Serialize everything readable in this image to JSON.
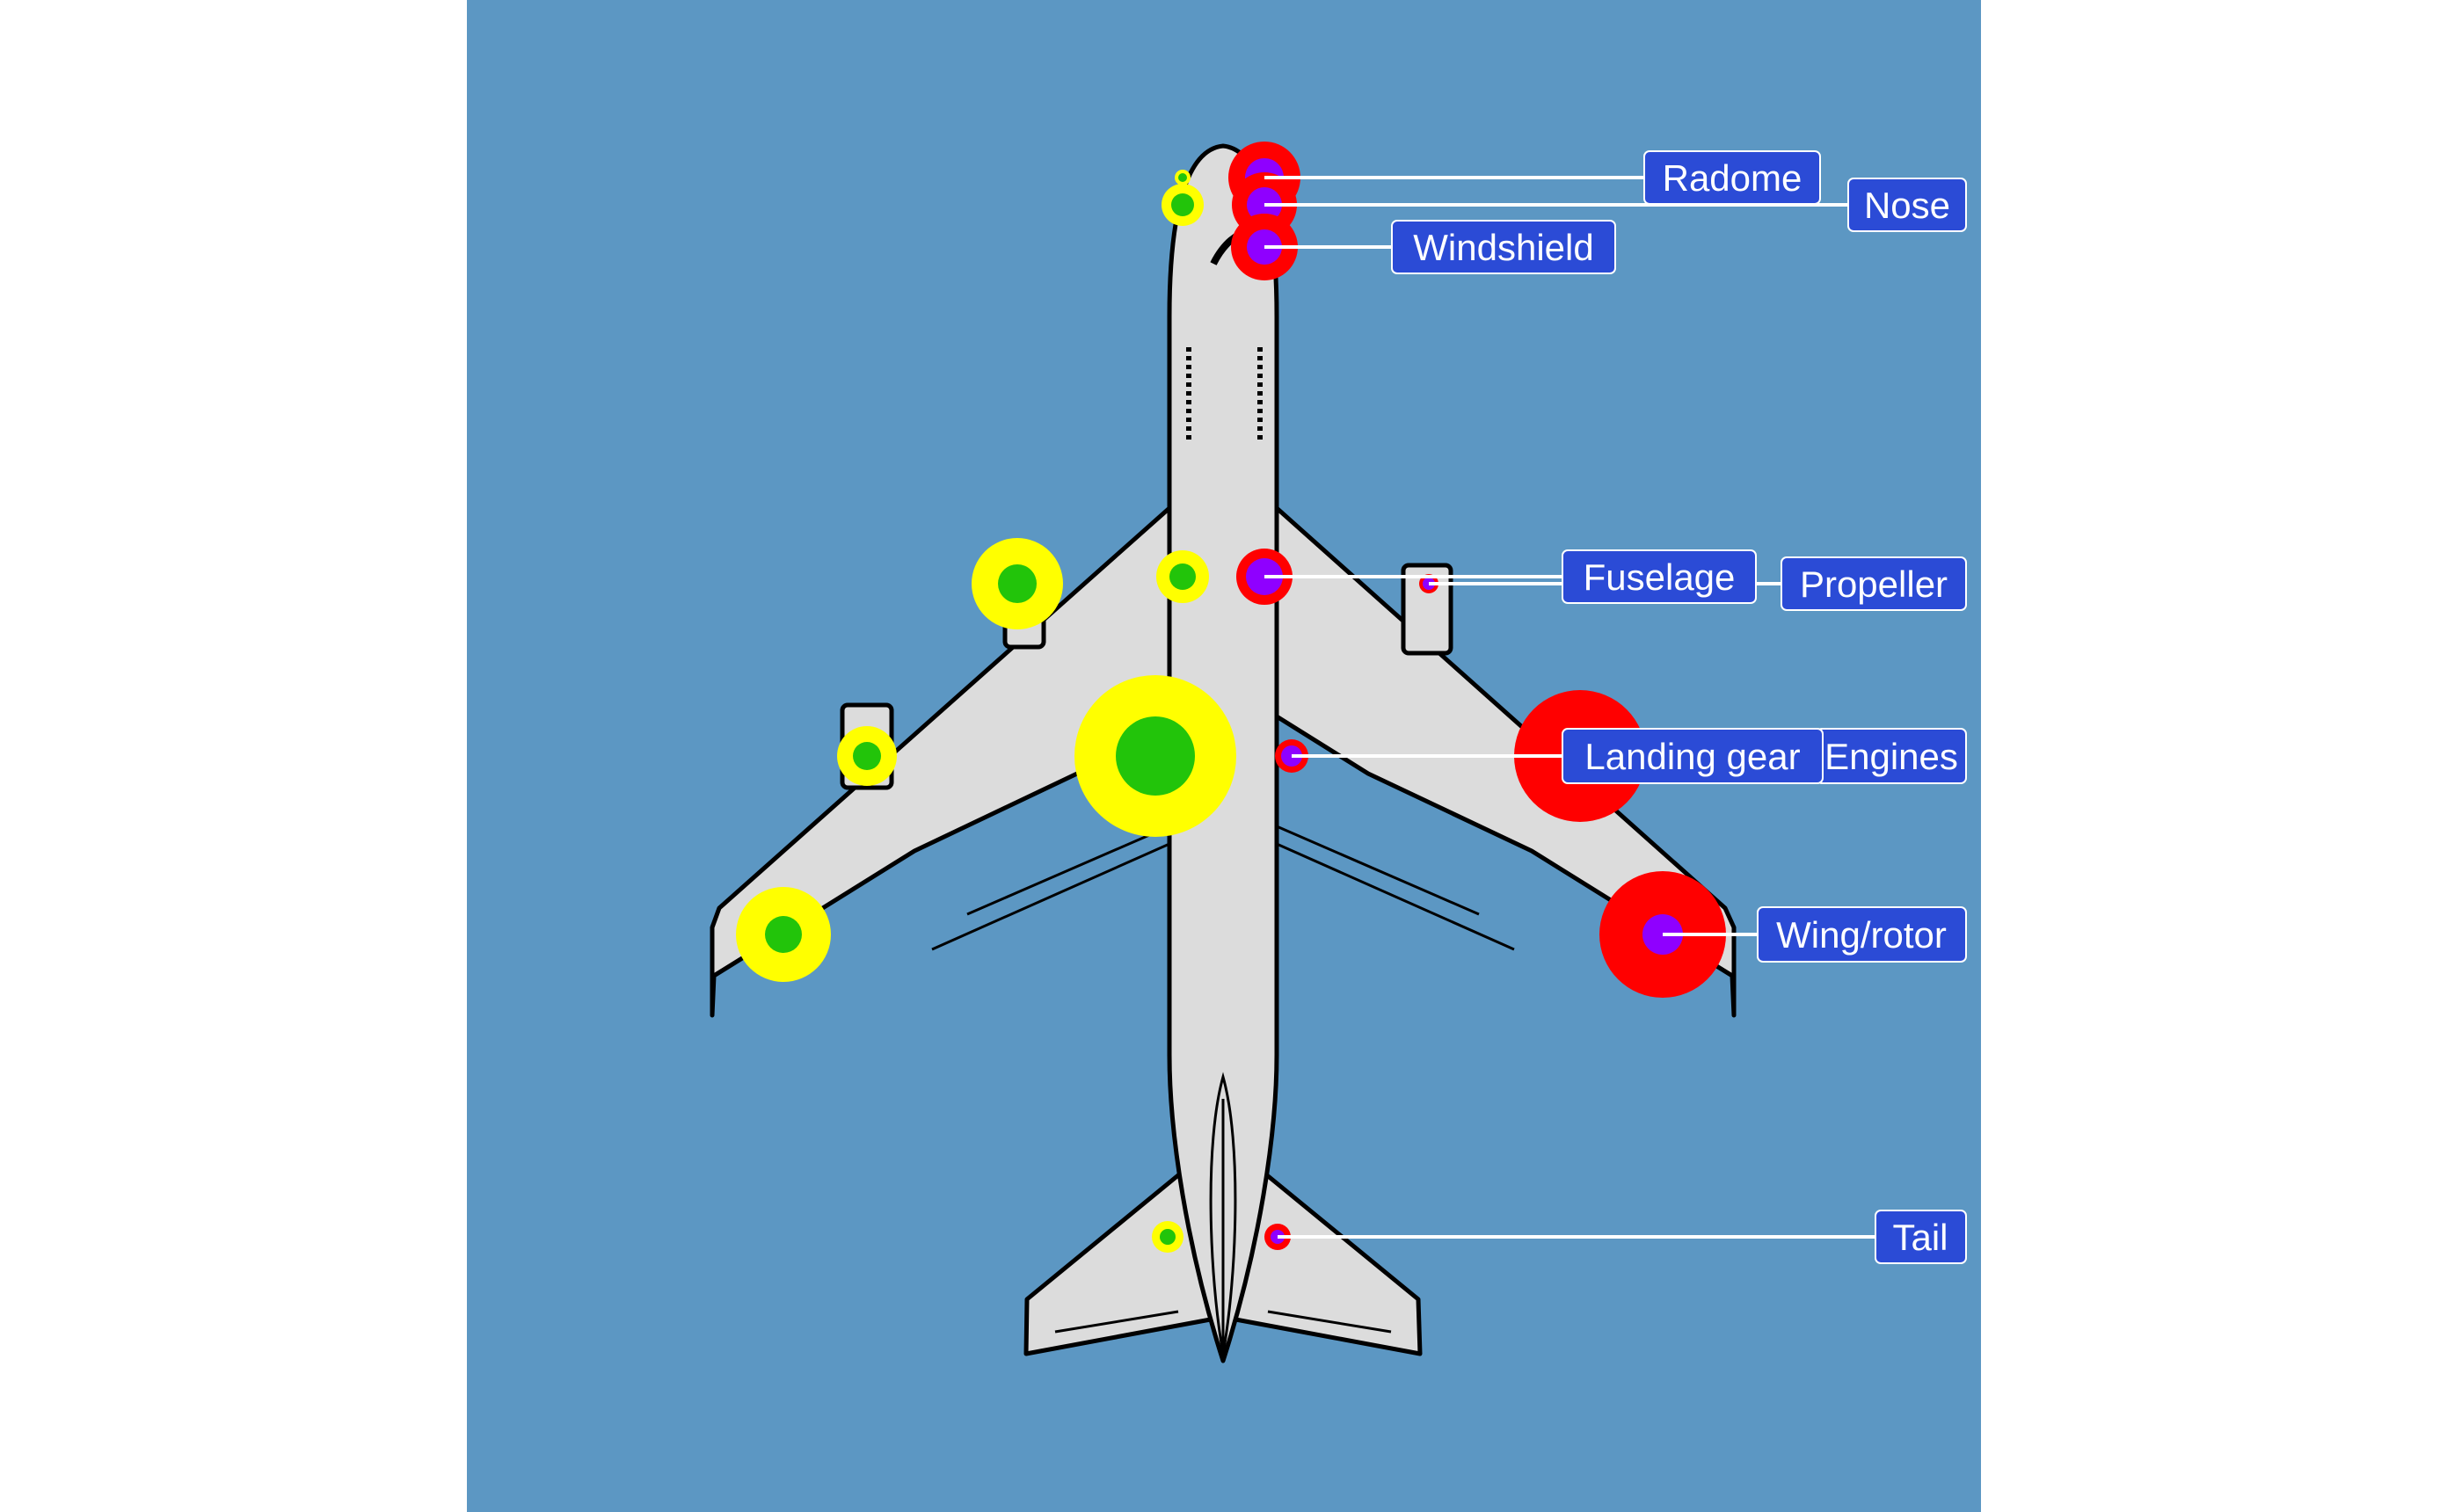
{
  "colors": {
    "panel_bg": "#5c97c3",
    "aircraft_fill": "#dcdcdc",
    "aircraft_outline": "#000000",
    "outer_yellow": "#ffff00",
    "inner_green": "#22c40a",
    "outer_red": "#ff0000",
    "inner_purple": "#8f00ff",
    "label_bg": "#2b4bd6",
    "label_text": "#ffffff",
    "leader_line": "#ffffff"
  },
  "labels": {
    "radome": "Radome",
    "nose": "Nose",
    "windshield": "Windshield",
    "fuselage": "Fuselage",
    "propeller": "Propeller",
    "landing_gear": "Landing gear",
    "engines": "Engines",
    "wing_rotor": "Wing/rotor",
    "tail": "Tail"
  }
}
